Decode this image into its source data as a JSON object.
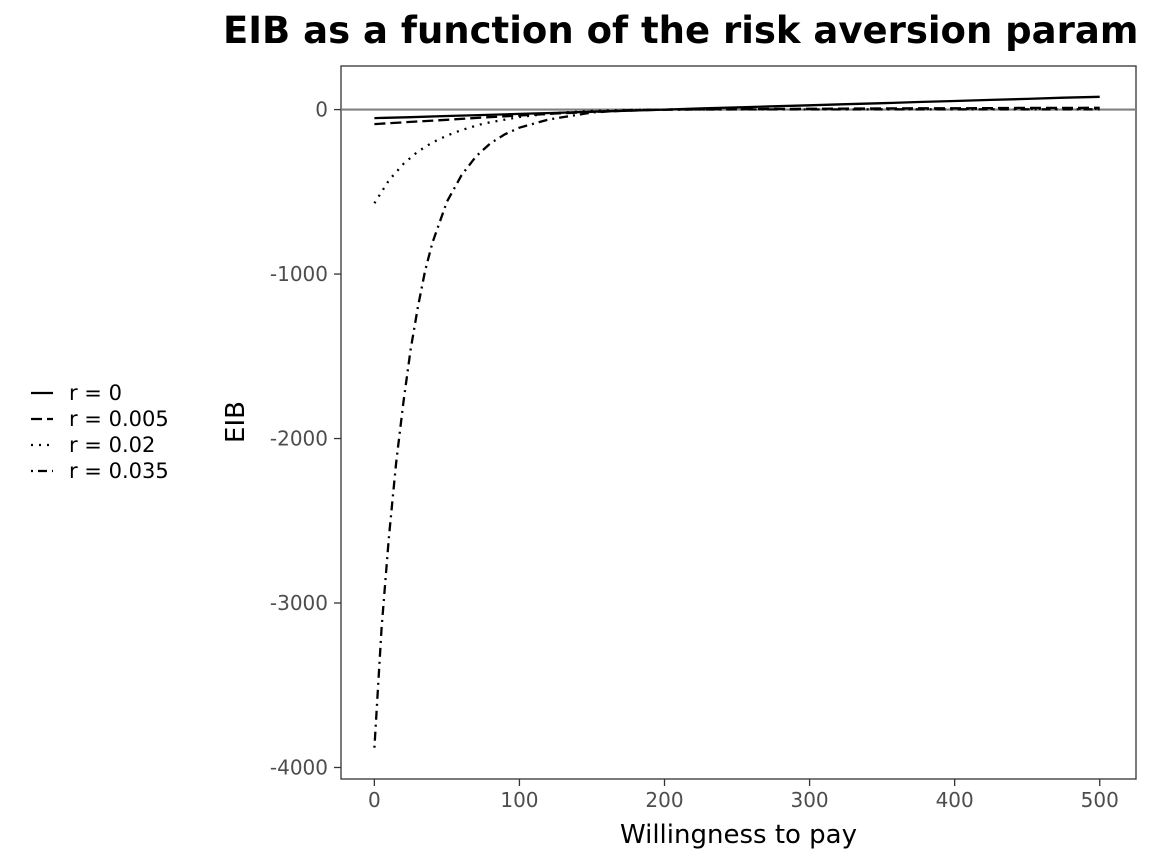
{
  "chart_data": {
    "type": "line",
    "title": "EIB as a function of the risk aversion param",
    "xlabel": "Willingness to pay",
    "ylabel": "EIB",
    "xlim": [
      -23,
      525
    ],
    "ylim": [
      -4070,
      265
    ],
    "x_ticks": [
      0,
      100,
      200,
      300,
      400,
      500
    ],
    "y_ticks": [
      0,
      -1000,
      -2000,
      -3000,
      -4000
    ],
    "grid": false,
    "reference_line": {
      "y": 0,
      "color": "#808080"
    },
    "legend": {
      "position": "left"
    },
    "series": [
      {
        "name": "r = 0",
        "linetype": "solid",
        "x": [
          0,
          25,
          50,
          75,
          100,
          125,
          150,
          175,
          200,
          225,
          250,
          275,
          300,
          325,
          350,
          375,
          400,
          425,
          450,
          475,
          500
        ],
        "values": [
          -52,
          -46,
          -39,
          -33,
          -26,
          -20,
          -13,
          -7,
          0,
          7,
          13,
          20,
          26,
          33,
          39,
          46,
          52,
          59,
          65,
          72,
          78
        ]
      },
      {
        "name": "r = 0.005",
        "linetype": "dashed",
        "x": [
          0,
          25,
          50,
          75,
          100,
          125,
          150,
          175,
          200,
          225,
          250,
          275,
          300,
          325,
          350,
          375,
          400,
          425,
          450,
          475,
          500
        ],
        "values": [
          -88,
          -75,
          -62,
          -48,
          -36,
          -24,
          -14,
          -6,
          0,
          2,
          3,
          4,
          5,
          6,
          7,
          8,
          8,
          9,
          10,
          10,
          11
        ]
      },
      {
        "name": "r = 0.02",
        "linetype": "dotted",
        "x": [
          0,
          10,
          20,
          30,
          40,
          50,
          60,
          75,
          100,
          125,
          150,
          175,
          200,
          250,
          300,
          350,
          400,
          450,
          500
        ],
        "values": [
          -570,
          -430,
          -330,
          -255,
          -200,
          -158,
          -125,
          -85,
          -45,
          -20,
          -8,
          -2,
          0,
          2,
          3,
          3,
          4,
          4,
          4
        ]
      },
      {
        "name": "r = 0.035",
        "linetype": "dotdash",
        "x": [
          0,
          5,
          10,
          15,
          20,
          25,
          30,
          35,
          40,
          50,
          60,
          70,
          80,
          90,
          100,
          120,
          150,
          175,
          200,
          250,
          300,
          350,
          400,
          450,
          500
        ],
        "values": [
          -3880,
          -3150,
          -2600,
          -2150,
          -1780,
          -1460,
          -1200,
          -980,
          -810,
          -560,
          -400,
          -285,
          -205,
          -150,
          -110,
          -60,
          -18,
          -4,
          0,
          1,
          1,
          2,
          2,
          2,
          2
        ]
      }
    ]
  }
}
